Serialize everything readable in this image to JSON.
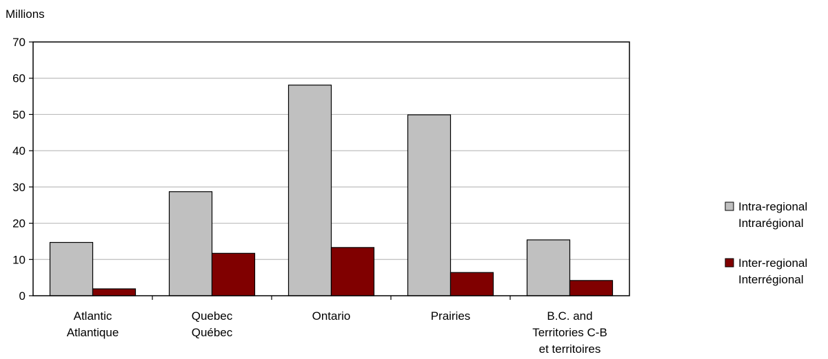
{
  "chart_data": {
    "type": "bar",
    "ylabel": "Millions",
    "ylim": [
      0,
      70
    ],
    "yticks": [
      0,
      10,
      20,
      30,
      40,
      50,
      60,
      70
    ],
    "grid": true,
    "legend_position": "right",
    "categories": [
      [
        "Atlantic",
        "Atlantique"
      ],
      [
        "Quebec",
        "Québec"
      ],
      [
        "Ontario"
      ],
      [
        "Prairies"
      ],
      [
        "B.C. and",
        "Territories C-B",
        "et territoires"
      ]
    ],
    "series": [
      {
        "name": [
          "Intra-regional",
          "Intrarégional"
        ],
        "color": "#c0c0c0",
        "values": [
          14.7,
          28.7,
          58.1,
          49.9,
          15.4
        ]
      },
      {
        "name": [
          "Inter-regional",
          "Interrégional"
        ],
        "color": "#800000",
        "values": [
          1.9,
          11.7,
          13.3,
          6.4,
          4.2
        ]
      }
    ]
  }
}
